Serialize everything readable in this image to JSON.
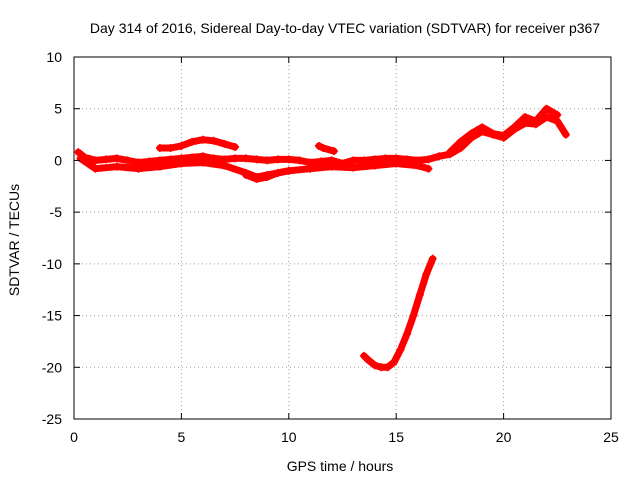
{
  "chart_data": {
    "type": "scatter",
    "title": "Day 314 of 2016, Sidereal Day-to-day VTEC variation (SDTVAR) for receiver p367",
    "xlabel": "GPS time / hours",
    "ylabel": "SDTVAR / TECUs",
    "xlim": [
      0,
      25
    ],
    "ylim": [
      -25,
      10
    ],
    "xticks": [
      0,
      5,
      10,
      15,
      20,
      25
    ],
    "yticks": [
      -25,
      -20,
      -15,
      -10,
      -5,
      0,
      5,
      10
    ],
    "xtick_labels": [
      "0",
      "5",
      "10",
      "15",
      "20",
      "25"
    ],
    "ytick_labels": [
      "-25",
      "-20",
      "-15",
      "-10",
      "-5",
      "0",
      "5",
      "10"
    ],
    "grid": true,
    "marker": "+",
    "series_color": "#ff0000",
    "series": [
      {
        "name": "main-band",
        "x": [
          0.2,
          0.5,
          1.0,
          1.5,
          2.0,
          2.5,
          3.0,
          3.5,
          4.0,
          4.5,
          5.0,
          5.5,
          6.0,
          6.5,
          7.0,
          7.5,
          8.0,
          8.5,
          9.0,
          9.5,
          10.0,
          10.5,
          11.0,
          11.5,
          12.0,
          12.5,
          13.0,
          13.5,
          14.0,
          14.5,
          15.0,
          15.5,
          16.0,
          16.5,
          17.0,
          17.5,
          18.0,
          18.5,
          19.0,
          19.5,
          20.0,
          20.5,
          21.0,
          21.5,
          22.0,
          22.5,
          22.9
        ],
        "y": [
          0.8,
          0.3,
          0.0,
          0.1,
          0.2,
          0.0,
          -0.2,
          -0.1,
          0.0,
          0.1,
          0.2,
          0.3,
          0.4,
          0.2,
          0.1,
          0.2,
          0.2,
          0.1,
          0.0,
          0.1,
          0.1,
          0.0,
          -0.2,
          -0.1,
          0.0,
          -0.3,
          0.0,
          0.0,
          0.1,
          0.2,
          0.2,
          0.1,
          0.0,
          0.1,
          0.4,
          0.6,
          1.2,
          2.2,
          2.8,
          2.5,
          2.2,
          3.0,
          3.6,
          3.5,
          4.2,
          3.8,
          2.5
        ]
      },
      {
        "name": "upper-arc",
        "x": [
          4.0,
          4.5,
          5.0,
          5.5,
          6.0,
          6.5,
          7.0,
          7.5
        ],
        "y": [
          1.2,
          1.2,
          1.4,
          1.8,
          2.0,
          1.9,
          1.6,
          1.3
        ]
      },
      {
        "name": "lower-band",
        "x": [
          0.3,
          1.0,
          2.0,
          3.0,
          4.0,
          5.0,
          6.0,
          7.0,
          8.0,
          8.5,
          9.0,
          10.0,
          11.0,
          12.0,
          13.0,
          14.0,
          15.0,
          16.0,
          16.5
        ],
        "y": [
          0.2,
          -0.8,
          -0.6,
          -0.8,
          -0.6,
          -0.3,
          -0.2,
          -0.5,
          -1.2,
          -1.6,
          -1.4,
          -1.0,
          -0.8,
          -0.6,
          -0.7,
          -0.5,
          -0.3,
          -0.5,
          -0.8
        ]
      },
      {
        "name": "lower-short-segment",
        "x": [
          8.0,
          8.5,
          9.0,
          9.5,
          10.0
        ],
        "y": [
          -1.4,
          -1.8,
          -1.6,
          -1.2,
          -1.0
        ]
      },
      {
        "name": "upper-right-loops",
        "x": [
          17.5,
          18.0,
          18.5,
          19.0,
          19.5,
          20.0,
          20.5,
          21.0,
          21.5,
          22.0,
          22.5
        ],
        "y": [
          0.8,
          1.8,
          2.6,
          3.2,
          2.6,
          2.4,
          3.2,
          4.2,
          3.8,
          5.0,
          4.4
        ]
      },
      {
        "name": "deep-arc",
        "x": [
          13.5,
          13.7,
          14.0,
          14.3,
          14.6,
          14.9,
          15.2,
          15.5,
          15.8,
          16.1,
          16.4,
          16.7
        ],
        "y": [
          -18.9,
          -19.3,
          -19.8,
          -20.0,
          -20.0,
          -19.5,
          -18.3,
          -16.8,
          -15.0,
          -13.0,
          -11.0,
          -9.5
        ]
      },
      {
        "name": "isolated-points",
        "x": [
          11.4,
          11.6,
          12.1
        ],
        "y": [
          1.4,
          1.2,
          0.9
        ]
      }
    ]
  }
}
